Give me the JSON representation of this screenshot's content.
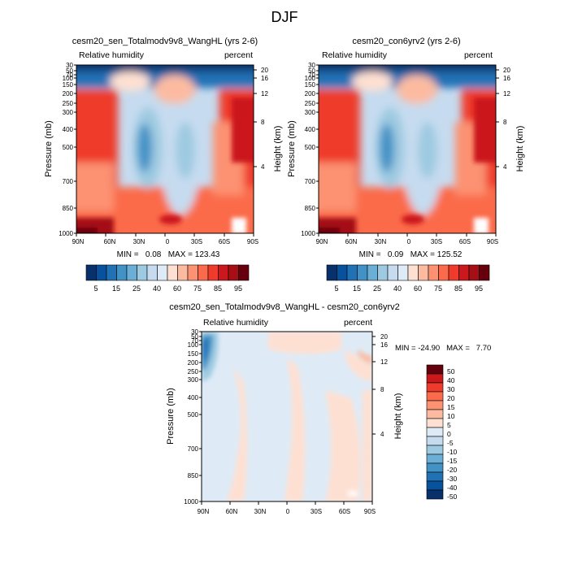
{
  "page": {
    "title": "DJF"
  },
  "colors": {
    "full": [
      "#08306b",
      "#08519c",
      "#2171b5",
      "#4292c6",
      "#6baed6",
      "#9ecae1",
      "#c6dbef",
      "#deebf7",
      "#fee0d2",
      "#fcbba1",
      "#fc9272",
      "#fb6a4a",
      "#ef3b2c",
      "#cb181d",
      "#a50f15",
      "#67000d"
    ],
    "diff": [
      "#08306b",
      "#08519c",
      "#2171b5",
      "#4292c6",
      "#6baed6",
      "#9ecae1",
      "#c6dbef",
      "#deebf7",
      "#fee0d2",
      "#fcbba1",
      "#fc9272",
      "#fb6a4a",
      "#ef3b2c",
      "#cb181d",
      "#67000d"
    ]
  },
  "chart_data": [
    {
      "type": "heatmap",
      "title": "cesm20_sen_Totalmodv9v8_WangHL (yrs 2-6)",
      "left_label": "Relative humidity",
      "right_label": "percent",
      "ylabel": "Pressure (mb)",
      "ylabel_right": "Height (km)",
      "x_ticks": [
        "90N",
        "60N",
        "30N",
        "0",
        "30S",
        "60S",
        "90S"
      ],
      "y_ticks": [
        "30",
        "50",
        "70",
        "100",
        "150",
        "200",
        "250",
        "300",
        "400",
        "500",
        "700",
        "850",
        "1000"
      ],
      "y_right_ticks": [
        "20",
        "16",
        "12",
        "8",
        "4"
      ],
      "stats": {
        "min": "0.08",
        "max": "123.43"
      },
      "stats_text": "MIN =   0.08   MAX = 123.43",
      "colorbar_labels": [
        "5",
        "15",
        "25",
        "40",
        "60",
        "75",
        "85",
        "95"
      ]
    },
    {
      "type": "heatmap",
      "title": "cesm20_con6yrv2 (yrs 2-6)",
      "left_label": "Relative humidity",
      "right_label": "percent",
      "ylabel": "Pressure (mb)",
      "ylabel_right": "Height (km)",
      "x_ticks": [
        "90N",
        "60N",
        "30N",
        "0",
        "30S",
        "60S",
        "90S"
      ],
      "y_ticks": [
        "30",
        "50",
        "70",
        "100",
        "150",
        "200",
        "250",
        "300",
        "400",
        "500",
        "700",
        "850",
        "1000"
      ],
      "y_right_ticks": [
        "20",
        "16",
        "12",
        "8",
        "4"
      ],
      "stats": {
        "min": "0.09",
        "max": "125.52"
      },
      "stats_text": "MIN =   0.09   MAX = 125.52",
      "colorbar_labels": [
        "5",
        "15",
        "25",
        "40",
        "60",
        "75",
        "85",
        "95"
      ]
    },
    {
      "type": "heatmap",
      "title": "cesm20_sen_Totalmodv9v8_WangHL - cesm20_con6yrv2",
      "left_label": "Relative humidity",
      "right_label": "percent",
      "ylabel": "Pressure (mb)",
      "ylabel_right": "Height (km)",
      "x_ticks": [
        "90N",
        "60N",
        "30N",
        "0",
        "30S",
        "60S",
        "90S"
      ],
      "y_ticks": [
        "30",
        "50",
        "70",
        "100",
        "150",
        "200",
        "250",
        "300",
        "400",
        "500",
        "700",
        "850",
        "1000"
      ],
      "y_right_ticks": [
        "20",
        "16",
        "12",
        "8",
        "4"
      ],
      "stats": {
        "min": "-24.90",
        "max": "7.70"
      },
      "stats_text": "MIN = -24.90   MAX =   7.70",
      "colorbar_labels": [
        "50",
        "40",
        "30",
        "20",
        "15",
        "10",
        "5",
        "0",
        "-5",
        "-10",
        "-15",
        "-20",
        "-30",
        "-40",
        "-50"
      ]
    }
  ]
}
